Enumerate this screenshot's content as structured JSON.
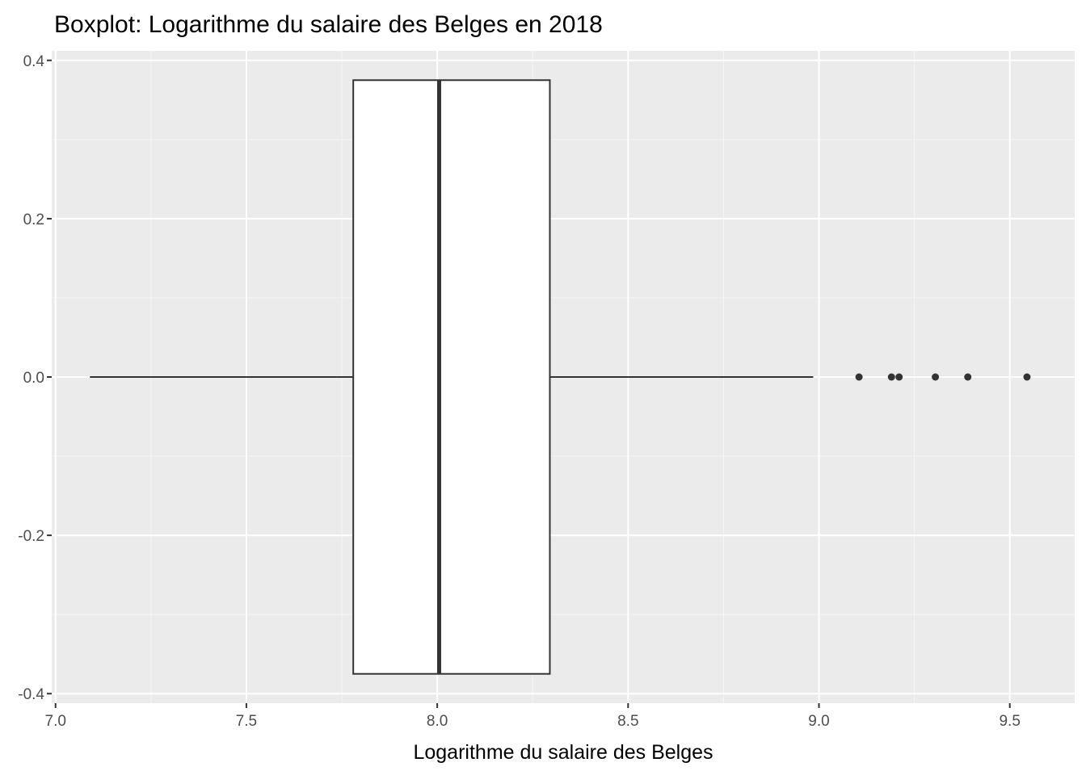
{
  "chart_data": {
    "type": "boxplot",
    "title": "Boxplot: Logarithme du salaire des Belges en 2018",
    "xlabel": "Logarithme du salaire des Belges",
    "ylabel": "",
    "xlim": [
      6.99,
      9.67
    ],
    "ylim": [
      -0.412,
      0.412
    ],
    "x_ticks": [
      7.0,
      7.5,
      8.0,
      8.5,
      9.0,
      9.5
    ],
    "x_tick_labels": [
      "7.0",
      "7.5",
      "8.0",
      "8.5",
      "9.0",
      "9.5"
    ],
    "y_ticks": [
      -0.4,
      -0.2,
      0.0,
      0.2,
      0.4
    ],
    "y_tick_labels": [
      "-0.4",
      "-0.2",
      "0.0",
      "0.2",
      "0.4"
    ],
    "grid": true,
    "box": {
      "whisker_low": 7.09,
      "q1": 7.78,
      "median": 8.005,
      "q3": 8.295,
      "whisker_high": 8.985,
      "y_center": 0.0,
      "y_half_width": 0.375
    },
    "outliers": [
      9.105,
      9.19,
      9.21,
      9.305,
      9.39,
      9.545
    ],
    "colors": {
      "panel_background": "#ebebeb",
      "grid_major": "#ffffff",
      "box_fill": "#ffffff",
      "box_line": "#333333",
      "outlier": "#333333"
    }
  }
}
